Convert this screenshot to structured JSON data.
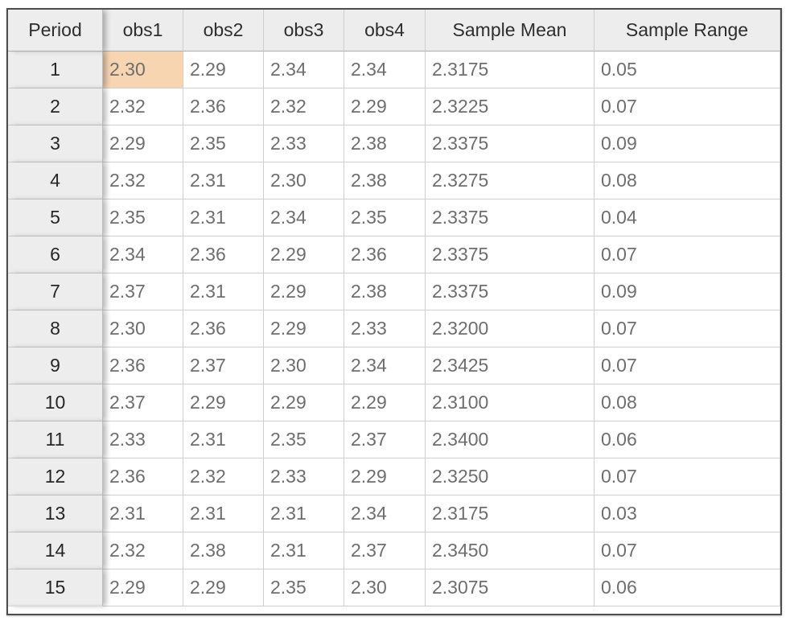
{
  "table": {
    "columns": [
      {
        "key": "period",
        "label": "Period"
      },
      {
        "key": "obs1",
        "label": "obs1"
      },
      {
        "key": "obs2",
        "label": "obs2"
      },
      {
        "key": "obs3",
        "label": "obs3"
      },
      {
        "key": "obs4",
        "label": "obs4"
      },
      {
        "key": "sample_mean",
        "label": "Sample Mean"
      },
      {
        "key": "sample_range",
        "label": "Sample Range"
      }
    ],
    "rows": [
      {
        "period": "1",
        "obs1": "2.30",
        "obs2": "2.29",
        "obs3": "2.34",
        "obs4": "2.34",
        "sample_mean": "2.3175",
        "sample_range": "0.05"
      },
      {
        "period": "2",
        "obs1": "2.32",
        "obs2": "2.36",
        "obs3": "2.32",
        "obs4": "2.29",
        "sample_mean": "2.3225",
        "sample_range": "0.07"
      },
      {
        "period": "3",
        "obs1": "2.29",
        "obs2": "2.35",
        "obs3": "2.33",
        "obs4": "2.38",
        "sample_mean": "2.3375",
        "sample_range": "0.09"
      },
      {
        "period": "4",
        "obs1": "2.32",
        "obs2": "2.31",
        "obs3": "2.30",
        "obs4": "2.38",
        "sample_mean": "2.3275",
        "sample_range": "0.08"
      },
      {
        "period": "5",
        "obs1": "2.35",
        "obs2": "2.31",
        "obs3": "2.34",
        "obs4": "2.35",
        "sample_mean": "2.3375",
        "sample_range": "0.04"
      },
      {
        "period": "6",
        "obs1": "2.34",
        "obs2": "2.36",
        "obs3": "2.29",
        "obs4": "2.36",
        "sample_mean": "2.3375",
        "sample_range": "0.07"
      },
      {
        "period": "7",
        "obs1": "2.37",
        "obs2": "2.31",
        "obs3": "2.29",
        "obs4": "2.38",
        "sample_mean": "2.3375",
        "sample_range": "0.09"
      },
      {
        "period": "8",
        "obs1": "2.30",
        "obs2": "2.36",
        "obs3": "2.29",
        "obs4": "2.33",
        "sample_mean": "2.3200",
        "sample_range": "0.07"
      },
      {
        "period": "9",
        "obs1": "2.36",
        "obs2": "2.37",
        "obs3": "2.30",
        "obs4": "2.34",
        "sample_mean": "2.3425",
        "sample_range": "0.07"
      },
      {
        "period": "10",
        "obs1": "2.37",
        "obs2": "2.29",
        "obs3": "2.29",
        "obs4": "2.29",
        "sample_mean": "2.3100",
        "sample_range": "0.08"
      },
      {
        "period": "11",
        "obs1": "2.33",
        "obs2": "2.31",
        "obs3": "2.35",
        "obs4": "2.37",
        "sample_mean": "2.3400",
        "sample_range": "0.06"
      },
      {
        "period": "12",
        "obs1": "2.36",
        "obs2": "2.32",
        "obs3": "2.33",
        "obs4": "2.29",
        "sample_mean": "2.3250",
        "sample_range": "0.07"
      },
      {
        "period": "13",
        "obs1": "2.31",
        "obs2": "2.31",
        "obs3": "2.31",
        "obs4": "2.34",
        "sample_mean": "2.3175",
        "sample_range": "0.03"
      },
      {
        "period": "14",
        "obs1": "2.32",
        "obs2": "2.38",
        "obs3": "2.31",
        "obs4": "2.37",
        "sample_mean": "2.3450",
        "sample_range": "0.07"
      },
      {
        "period": "15",
        "obs1": "2.29",
        "obs2": "2.29",
        "obs3": "2.35",
        "obs4": "2.30",
        "sample_mean": "2.3075",
        "sample_range": "0.06"
      }
    ],
    "selected_cell": {
      "row_index": 0,
      "column": "obs1"
    }
  },
  "colors": {
    "selected_cell_bg": "#F8D5B1",
    "header_bg": "#EDEDED",
    "grid_line": "#CFCFCF",
    "outer_border": "#4D4D4D",
    "data_text": "#6E6E6E",
    "header_text": "#2E2E2E"
  }
}
